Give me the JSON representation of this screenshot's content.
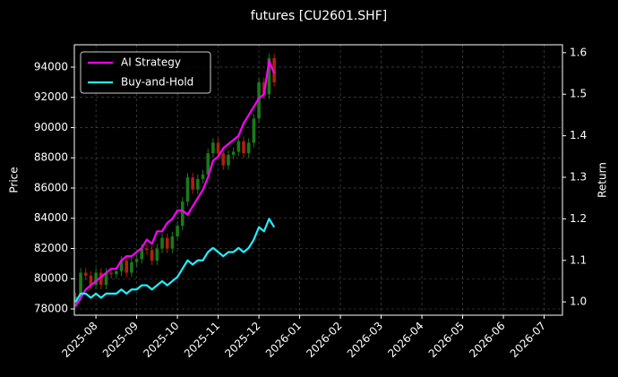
{
  "chart_data": {
    "type": "candlestick",
    "title": "futures [CU2601.SHF]",
    "ylabel": "Price",
    "y2label": "Return",
    "x": [
      -0.5,
      -0.375,
      -0.25,
      -0.125,
      0,
      0.125,
      0.25,
      0.375,
      0.5,
      0.625,
      0.75,
      0.875,
      1,
      1.125,
      1.25,
      1.375,
      1.5,
      1.625,
      1.75,
      1.875,
      2,
      2.125,
      2.25,
      2.375,
      2.5,
      2.625,
      2.75,
      2.875,
      3,
      3.125,
      3.25,
      3.375,
      3.5,
      3.625,
      3.75,
      3.875,
      4,
      4.125,
      4.25,
      4.375
    ],
    "open": [
      78400,
      78800,
      80400,
      80200,
      79600,
      80400,
      79600,
      80400,
      80300,
      80500,
      81200,
      80400,
      81100,
      81300,
      82000,
      81900,
      81200,
      82000,
      82700,
      82000,
      82800,
      83500,
      85100,
      86700,
      85900,
      86600,
      86900,
      88300,
      89000,
      88300,
      87500,
      88200,
      88400,
      89100,
      88300,
      89000,
      90600,
      93000,
      92200,
      94600
    ],
    "high": [
      79100,
      80700,
      80700,
      80500,
      80700,
      80700,
      80700,
      80700,
      80800,
      81500,
      81500,
      81400,
      81600,
      82300,
      82300,
      82200,
      82300,
      83000,
      83000,
      83100,
      83800,
      85400,
      87000,
      87000,
      86900,
      87200,
      88600,
      89300,
      89300,
      88600,
      88500,
      88700,
      89400,
      89400,
      89300,
      90900,
      93300,
      93300,
      94900,
      94900
    ],
    "low": [
      78100,
      78500,
      79900,
      79300,
      79300,
      79300,
      79300,
      80000,
      80000,
      80200,
      80100,
      80100,
      80800,
      81000,
      81600,
      80900,
      80900,
      81700,
      81700,
      81700,
      82500,
      83200,
      84800,
      85600,
      85600,
      86300,
      86600,
      88000,
      88000,
      87200,
      87200,
      87900,
      88100,
      88000,
      88000,
      88700,
      90300,
      91900,
      91900,
      92700
    ],
    "close": [
      78800,
      80400,
      80200,
      79600,
      80400,
      79600,
      80400,
      80300,
      80500,
      81200,
      80400,
      81100,
      81300,
      82000,
      81900,
      81200,
      82000,
      82700,
      82000,
      82800,
      83500,
      85100,
      86700,
      85900,
      86600,
      86900,
      88300,
      89000,
      88300,
      87500,
      88200,
      88400,
      89100,
      88300,
      89000,
      90600,
      93000,
      92200,
      94600,
      93000
    ],
    "up_color": "#1a7a1a",
    "down_color": "#b0200c",
    "series": [
      {
        "name": "AI Strategy",
        "color": "#ff00ff",
        "axis": "y2",
        "values": [
          0.99,
          1.01,
          1.03,
          1.04,
          1.05,
          1.06,
          1.07,
          1.08,
          1.08,
          1.1,
          1.11,
          1.11,
          1.12,
          1.13,
          1.15,
          1.14,
          1.17,
          1.17,
          1.19,
          1.2,
          1.22,
          1.22,
          1.21,
          1.23,
          1.25,
          1.27,
          1.3,
          1.34,
          1.35,
          1.37,
          1.38,
          1.39,
          1.4,
          1.43,
          1.45,
          1.47,
          1.49,
          1.5,
          1.58,
          1.55
        ]
      },
      {
        "name": "Buy-and-Hold",
        "color": "#22eeff",
        "axis": "y2",
        "values": [
          1.0,
          1.02,
          1.02,
          1.01,
          1.02,
          1.01,
          1.02,
          1.02,
          1.02,
          1.03,
          1.02,
          1.03,
          1.03,
          1.04,
          1.04,
          1.03,
          1.04,
          1.05,
          1.04,
          1.05,
          1.06,
          1.08,
          1.1,
          1.09,
          1.1,
          1.1,
          1.12,
          1.13,
          1.12,
          1.11,
          1.12,
          1.12,
          1.13,
          1.12,
          1.13,
          1.15,
          1.18,
          1.17,
          1.2,
          1.18
        ]
      }
    ],
    "xlim": [
      -0.53,
      11.45
    ],
    "xticks": [
      {
        "value": 0,
        "label": "2025-08"
      },
      {
        "value": 1,
        "label": "2025-09"
      },
      {
        "value": 2,
        "label": "2025-10"
      },
      {
        "value": 3,
        "label": "2025-11"
      },
      {
        "value": 4,
        "label": "2025-12"
      },
      {
        "value": 5,
        "label": "2026-01"
      },
      {
        "value": 6,
        "label": "2026-02"
      },
      {
        "value": 7,
        "label": "2026-03"
      },
      {
        "value": 8,
        "label": "2026-04"
      },
      {
        "value": 9,
        "label": "2026-05"
      },
      {
        "value": 10,
        "label": "2026-06"
      },
      {
        "value": 11,
        "label": "2026-07"
      }
    ],
    "ylim": [
      77585,
      95480
    ],
    "yticks": [
      78000,
      80000,
      82000,
      84000,
      86000,
      88000,
      90000,
      92000,
      94000
    ],
    "y2lim": [
      0.968,
      1.619
    ],
    "y2ticks": [
      {
        "value": 1,
        "label": "1.0"
      },
      1.1,
      1.2,
      1.3,
      1.4,
      1.5,
      1.6
    ],
    "grid": true,
    "legend": "upper left"
  }
}
